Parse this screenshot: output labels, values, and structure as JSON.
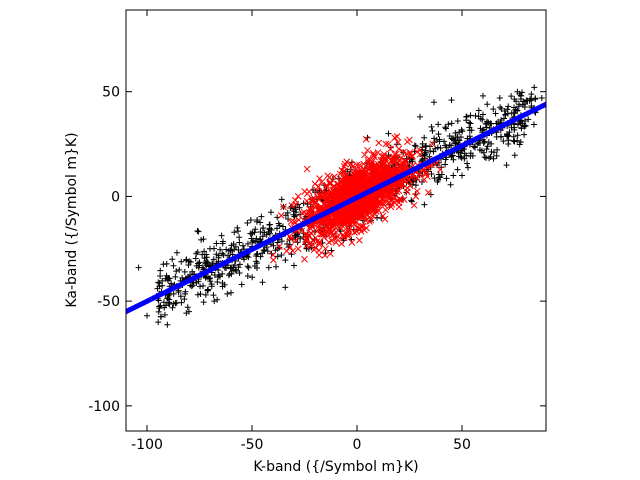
{
  "chart_data": {
    "type": "scatter",
    "title": "",
    "xlabel": "K-band ({/Symbol m}K)",
    "ylabel": "Ka-band ({/Symbol m}K)",
    "xlim": [
      -110,
      90
    ],
    "ylim": [
      -112,
      89
    ],
    "xticks": [
      "-100",
      "-50",
      "0",
      "50"
    ],
    "xtick_values": [
      -100,
      -50,
      0,
      50
    ],
    "yticks": [
      "-100",
      "-50",
      "0",
      "50"
    ],
    "ytick_values": [
      -100,
      -50,
      0,
      50
    ],
    "grid": false,
    "legend": "none",
    "series": [
      {
        "marker": "plus",
        "color": "#000000",
        "description_of_spread": "broad cloud along y = x/2",
        "points": [
          [
            -104,
            -34
          ],
          [
            -95,
            -44
          ],
          [
            -90,
            -40
          ],
          [
            -85,
            -45
          ],
          [
            -82,
            -36
          ],
          [
            -78,
            -40
          ],
          [
            -75,
            -33
          ],
          [
            -72,
            -47
          ],
          [
            -70,
            -39
          ],
          [
            -66,
            -31
          ],
          [
            -64,
            -43
          ],
          [
            -61,
            -26
          ],
          [
            -58,
            -35
          ],
          [
            -56,
            -22
          ],
          [
            -54,
            -29
          ],
          [
            -52,
            -38
          ],
          [
            -50,
            -24
          ],
          [
            -48,
            -31
          ],
          [
            -46,
            -17
          ],
          [
            -44,
            -26
          ],
          [
            -42,
            -34
          ],
          [
            -40,
            -20
          ],
          [
            -38,
            -10
          ],
          [
            -36,
            -28
          ],
          [
            -34,
            -16
          ],
          [
            -32,
            -23
          ],
          [
            -30,
            -7
          ],
          [
            -28,
            -19
          ],
          [
            -26,
            -13
          ],
          [
            -24,
            -25
          ],
          [
            -22,
            -5
          ],
          [
            -20,
            -17
          ],
          [
            -18,
            2
          ],
          [
            -15,
            -12
          ],
          [
            -12,
            -2
          ],
          [
            -10,
            -19
          ],
          [
            -8,
            4
          ],
          [
            -5,
            -8
          ],
          [
            -2,
            7
          ],
          [
            0,
            -10
          ],
          [
            2,
            9
          ],
          [
            5,
            -3
          ],
          [
            8,
            12
          ],
          [
            10,
            0
          ],
          [
            12,
            15
          ],
          [
            15,
            3
          ],
          [
            18,
            18
          ],
          [
            20,
            5
          ],
          [
            22,
            21
          ],
          [
            25,
            9
          ],
          [
            28,
            24
          ],
          [
            30,
            11
          ],
          [
            32,
            28
          ],
          [
            35,
            14
          ],
          [
            38,
            27
          ],
          [
            40,
            18
          ],
          [
            42,
            33
          ],
          [
            45,
            19
          ],
          [
            48,
            36
          ],
          [
            50,
            22
          ],
          [
            52,
            38
          ],
          [
            55,
            26
          ],
          [
            58,
            41
          ],
          [
            60,
            29
          ],
          [
            62,
            44
          ],
          [
            65,
            32
          ],
          [
            68,
            47
          ],
          [
            70,
            34
          ],
          [
            72,
            43
          ],
          [
            75,
            38
          ],
          [
            78,
            48
          ],
          [
            80,
            36
          ],
          [
            83,
            46
          ],
          [
            85,
            40
          ],
          [
            88,
            47
          ],
          [
            -91,
            -52
          ],
          [
            -80,
            -55
          ],
          [
            -68,
            -50
          ],
          [
            -60,
            -46
          ],
          [
            -45,
            -41
          ],
          [
            -30,
            -33
          ],
          [
            -15,
            -27
          ],
          [
            5,
            28
          ],
          [
            15,
            30
          ],
          [
            30,
            38
          ],
          [
            45,
            46
          ],
          [
            60,
            48
          ],
          [
            72,
            25
          ],
          [
            -100,
            -57
          ],
          [
            -88,
            -30
          ],
          [
            -70,
            -25
          ],
          [
            -57,
            -15
          ],
          [
            -35,
            -5
          ],
          [
            50,
            10
          ],
          [
            65,
            18
          ],
          [
            78,
            26
          ]
        ]
      },
      {
        "marker": "cross",
        "color": "#ff0000",
        "description_of_spread": "dense core along y = x/2",
        "points": [
          [
            -35,
            -5
          ],
          [
            -32,
            -19
          ],
          [
            -30,
            -12
          ],
          [
            -28,
            -25
          ],
          [
            -26,
            -8
          ],
          [
            -24,
            -20
          ],
          [
            -22,
            -14
          ],
          [
            -20,
            -3
          ],
          [
            -18,
            -22
          ],
          [
            -16,
            -10
          ],
          [
            -14,
            -1
          ],
          [
            -12,
            -17
          ],
          [
            -10,
            -6
          ],
          [
            -8,
            3
          ],
          [
            -6,
            -12
          ],
          [
            -4,
            6
          ],
          [
            -2,
            -4
          ],
          [
            0,
            2
          ],
          [
            2,
            -8
          ],
          [
            4,
            10
          ],
          [
            6,
            0
          ],
          [
            8,
            14
          ],
          [
            10,
            4
          ],
          [
            12,
            17
          ],
          [
            14,
            7
          ],
          [
            16,
            -2
          ],
          [
            18,
            20
          ],
          [
            20,
            9
          ],
          [
            22,
            16
          ],
          [
            24,
            4
          ],
          [
            26,
            19
          ],
          [
            28,
            12
          ],
          [
            30,
            22
          ],
          [
            32,
            8
          ],
          [
            34,
            17
          ],
          [
            36,
            25
          ],
          [
            -25,
            -30
          ],
          [
            -15,
            -25
          ],
          [
            -5,
            -18
          ],
          [
            5,
            22
          ],
          [
            15,
            25
          ],
          [
            25,
            27
          ],
          [
            -37,
            -24
          ],
          [
            -40,
            -28
          ],
          [
            38,
            16
          ],
          [
            20,
            -3
          ],
          [
            -20,
            6
          ],
          [
            10,
            21
          ],
          [
            -10,
            -22
          ],
          [
            0,
            15
          ],
          [
            0,
            -15
          ],
          [
            -28,
            0
          ],
          [
            28,
            0
          ],
          [
            -18,
            -28
          ],
          [
            18,
            28
          ],
          [
            -6,
            12
          ],
          [
            6,
            -12
          ]
        ]
      },
      {
        "marker": "dot",
        "color": "#0000ff",
        "description_of_spread": "thick fitted line from (-110, -55) to (90, 44)",
        "line": {
          "x": [
            -110,
            90
          ],
          "y": [
            -55,
            44
          ]
        }
      }
    ]
  }
}
